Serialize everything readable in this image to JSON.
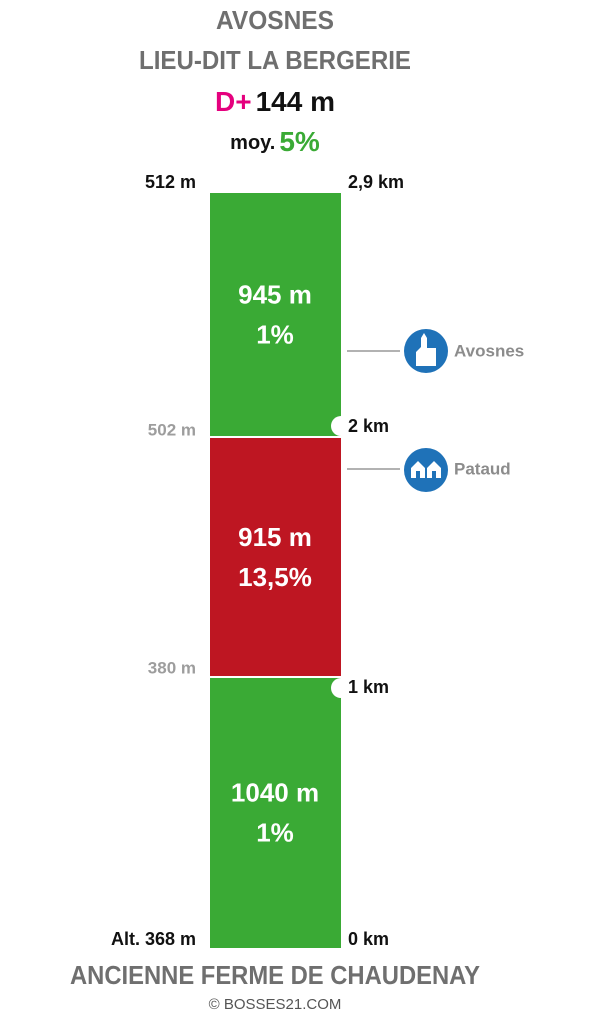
{
  "header": {
    "title": "AVOSNES",
    "subtitle": "LIEU-DIT LA BERGERIE",
    "gain_label": "D+",
    "gain": "144 m",
    "avg_label": "moy.",
    "avg": "5%"
  },
  "segments": [
    {
      "length": "945 m",
      "grade": "1%",
      "color": "#3aaa35"
    },
    {
      "length": "915 m",
      "grade": "13,5%",
      "color": "#be1622"
    },
    {
      "length": "1040 m",
      "grade": "1%",
      "color": "#3aaa35"
    }
  ],
  "altitudes": [
    "512 m",
    "502 m",
    "380 m",
    "Alt. 368 m"
  ],
  "distances": [
    "2,9 km",
    "2 km",
    "1 km",
    "0 km"
  ],
  "places": [
    {
      "label": "Avosnes"
    },
    {
      "label": "Pataud"
    }
  ],
  "footer": {
    "start": "ANCIENNE FERME DE CHAUDENAY",
    "credit": "© BOSSES21.COM"
  }
}
